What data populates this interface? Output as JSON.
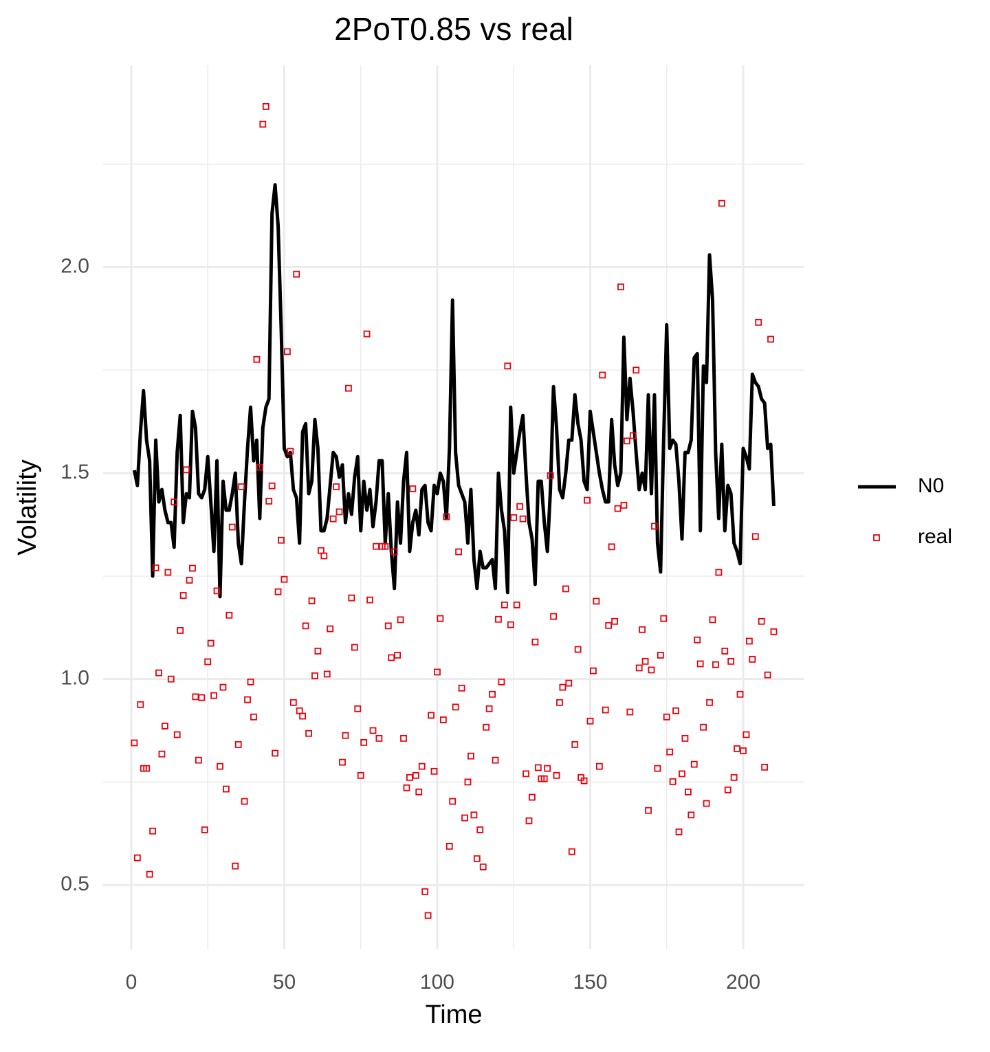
{
  "chart_data": {
    "type": "combo",
    "title": "2PoT0.85  vs  real",
    "x_label": "Time",
    "y_label": "Volatility",
    "x": [
      1,
      2,
      3,
      4,
      5,
      6,
      7,
      8,
      9,
      10,
      11,
      12,
      13,
      14,
      15,
      16,
      17,
      18,
      19,
      20,
      21,
      22,
      23,
      24,
      25,
      26,
      27,
      28,
      29,
      30,
      31,
      32,
      33,
      34,
      35,
      36,
      37,
      38,
      39,
      40,
      41,
      42,
      43,
      44,
      45,
      46,
      47,
      48,
      49,
      50,
      51,
      52,
      53,
      54,
      55,
      56,
      57,
      58,
      59,
      60,
      61,
      62,
      63,
      64,
      65,
      66,
      67,
      68,
      69,
      70,
      71,
      72,
      73,
      74,
      75,
      76,
      77,
      78,
      79,
      80,
      81,
      82,
      83,
      84,
      85,
      86,
      87,
      88,
      89,
      90,
      91,
      92,
      93,
      94,
      95,
      96,
      97,
      98,
      99,
      100,
      101,
      102,
      103,
      104,
      105,
      106,
      107,
      108,
      109,
      110,
      111,
      112,
      113,
      114,
      115,
      116,
      117,
      118,
      119,
      120,
      121,
      122,
      123,
      124,
      125,
      126,
      127,
      128,
      129,
      130,
      131,
      132,
      133,
      134,
      135,
      136,
      137,
      138,
      139,
      140,
      141,
      142,
      143,
      144,
      145,
      146,
      147,
      148,
      149,
      150,
      151,
      152,
      153,
      154,
      155,
      156,
      157,
      158,
      159,
      160,
      161,
      162,
      163,
      164,
      165,
      166,
      167,
      168,
      169,
      170,
      171,
      172,
      173,
      174,
      175,
      176,
      177,
      178,
      179,
      180,
      181,
      182,
      183,
      184,
      185,
      186,
      187,
      188,
      189,
      190,
      191,
      192,
      193,
      194,
      195,
      196,
      197,
      198,
      199,
      200,
      201,
      202,
      203,
      204,
      205,
      206,
      207,
      208,
      209,
      210
    ],
    "series": [
      {
        "name": "N0",
        "type": "line",
        "color": "#000000",
        "values": [
          1.507,
          1.47,
          1.6,
          1.7,
          1.58,
          1.53,
          1.25,
          1.58,
          1.43,
          1.46,
          1.41,
          1.38,
          1.38,
          1.32,
          1.55,
          1.64,
          1.38,
          1.45,
          1.44,
          1.65,
          1.61,
          1.45,
          1.44,
          1.46,
          1.54,
          1.43,
          1.31,
          1.53,
          1.2,
          1.48,
          1.41,
          1.41,
          1.45,
          1.5,
          1.33,
          1.28,
          1.43,
          1.56,
          1.66,
          1.53,
          1.58,
          1.39,
          1.61,
          1.66,
          1.68,
          2.13,
          2.2,
          2.1,
          1.85,
          1.56,
          1.54,
          1.55,
          1.46,
          1.44,
          1.33,
          1.6,
          1.62,
          1.45,
          1.48,
          1.63,
          1.56,
          1.36,
          1.36,
          1.39,
          1.47,
          1.55,
          1.54,
          1.49,
          1.52,
          1.38,
          1.45,
          1.4,
          1.49,
          1.54,
          1.36,
          1.48,
          1.41,
          1.46,
          1.37,
          1.43,
          1.53,
          1.53,
          1.33,
          1.45,
          1.31,
          1.22,
          1.43,
          1.33,
          1.48,
          1.55,
          1.31,
          1.38,
          1.41,
          1.35,
          1.46,
          1.47,
          1.38,
          1.36,
          1.47,
          1.45,
          1.5,
          1.48,
          1.39,
          1.56,
          1.92,
          1.55,
          1.47,
          1.45,
          1.43,
          1.33,
          1.46,
          1.29,
          1.22,
          1.31,
          1.27,
          1.27,
          1.28,
          1.29,
          1.22,
          1.5,
          1.41,
          1.36,
          1.21,
          1.66,
          1.5,
          1.55,
          1.6,
          1.64,
          1.5,
          1.38,
          1.34,
          1.23,
          1.48,
          1.48,
          1.38,
          1.31,
          1.46,
          1.71,
          1.61,
          1.46,
          1.44,
          1.5,
          1.58,
          1.58,
          1.69,
          1.62,
          1.58,
          1.48,
          1.46,
          1.65,
          1.6,
          1.55,
          1.5,
          1.46,
          1.43,
          1.43,
          1.63,
          1.52,
          1.47,
          1.5,
          1.83,
          1.63,
          1.73,
          1.65,
          1.55,
          1.46,
          1.5,
          1.46,
          1.69,
          1.45,
          1.69,
          1.33,
          1.26,
          1.58,
          1.86,
          1.56,
          1.58,
          1.57,
          1.48,
          1.34,
          1.55,
          1.55,
          1.58,
          1.78,
          1.79,
          1.36,
          1.76,
          1.72,
          2.03,
          1.92,
          1.55,
          1.39,
          1.57,
          1.36,
          1.47,
          1.45,
          1.33,
          1.31,
          1.28,
          1.56,
          1.54,
          1.51,
          1.74,
          1.72,
          1.71,
          1.68,
          1.67,
          1.56,
          1.57,
          1.42
        ]
      },
      {
        "name": "real",
        "type": "scatter",
        "color": "#e8000b",
        "values": [
          0.845,
          0.566,
          0.938,
          0.783,
          0.783,
          0.526,
          0.631,
          1.27,
          1.015,
          0.818,
          0.886,
          1.259,
          1.0,
          1.43,
          0.865,
          1.118,
          1.203,
          1.508,
          1.24,
          1.269,
          0.957,
          0.803,
          0.955,
          0.634,
          1.042,
          1.087,
          0.96,
          1.214,
          0.788,
          0.98,
          0.733,
          1.155,
          1.369,
          0.546,
          0.841,
          1.467,
          0.703,
          0.95,
          0.993,
          0.908,
          1.776,
          1.514,
          2.347,
          2.39,
          1.432,
          1.469,
          0.82,
          1.212,
          1.337,
          1.242,
          1.795,
          1.553,
          0.943,
          1.983,
          0.923,
          0.91,
          1.129,
          0.868,
          1.19,
          1.008,
          1.068,
          1.312,
          1.299,
          1.012,
          1.122,
          1.389,
          1.467,
          1.406,
          0.798,
          0.863,
          1.706,
          1.197,
          1.077,
          0.928,
          0.766,
          0.846,
          1.838,
          1.192,
          0.875,
          1.322,
          0.856,
          1.322,
          1.322,
          1.129,
          1.052,
          1.309,
          1.058,
          1.144,
          0.856,
          0.736,
          0.761,
          1.462,
          0.766,
          0.726,
          0.788,
          0.484,
          0.426,
          0.912,
          0.776,
          1.017,
          1.147,
          0.901,
          1.394,
          0.594,
          0.703,
          0.932,
          1.309,
          0.978,
          0.663,
          0.75,
          0.813,
          0.67,
          0.564,
          0.634,
          0.544,
          0.883,
          0.928,
          0.963,
          0.803,
          1.145,
          0.993,
          1.18,
          1.76,
          1.132,
          1.392,
          1.18,
          1.419,
          1.389,
          0.77,
          0.656,
          0.713,
          1.09,
          0.785,
          0.758,
          0.758,
          0.783,
          1.494,
          1.152,
          0.766,
          0.943,
          0.98,
          1.219,
          0.99,
          0.581,
          0.841,
          1.072,
          0.761,
          0.753,
          1.434,
          0.898,
          1.02,
          1.189,
          0.788,
          1.738,
          0.925,
          1.13,
          1.321,
          1.14,
          1.414,
          1.952,
          1.422,
          1.578,
          0.92,
          1.591,
          1.75,
          1.027,
          1.12,
          1.043,
          0.681,
          1.022,
          1.371,
          0.783,
          1.058,
          1.147,
          0.908,
          0.823,
          0.751,
          0.923,
          0.629,
          0.77,
          0.856,
          0.726,
          0.67,
          0.793,
          1.095,
          1.037,
          0.883,
          0.698,
          0.943,
          1.144,
          1.035,
          1.259,
          2.155,
          1.068,
          0.731,
          1.043,
          0.761,
          0.831,
          0.963,
          0.826,
          0.865,
          1.092,
          1.048,
          1.346,
          1.866,
          1.14,
          0.786,
          1.01,
          1.825,
          1.115
        ]
      }
    ],
    "xlim": [
      -9.2,
      220
    ],
    "ylim": [
      0.345,
      2.49
    ],
    "xticks": [
      0,
      50,
      100,
      150,
      200
    ],
    "yticks": [
      0.5,
      {
        "value": 1,
        "label": "1.0"
      },
      1.5,
      {
        "value": 2,
        "label": "2.0"
      }
    ],
    "minor_xticks": [
      25,
      75,
      125,
      175
    ],
    "minor_yticks": [
      0.75,
      1.25,
      1.75,
      2.25
    ],
    "grid": true,
    "legend": "right"
  }
}
